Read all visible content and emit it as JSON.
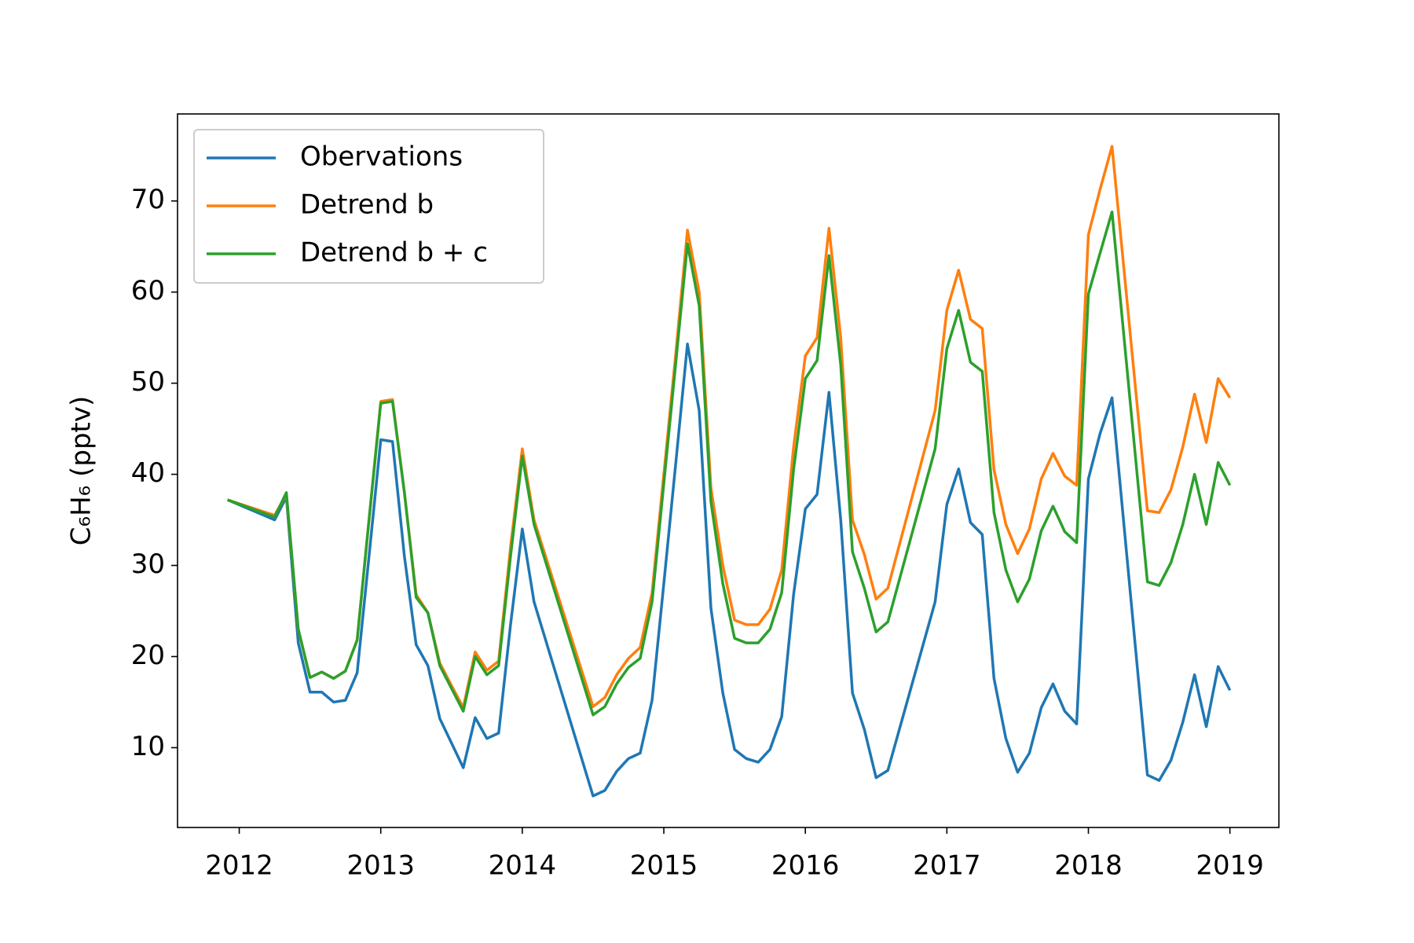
{
  "chart_data": {
    "type": "line",
    "ylabel": "C₆H₆ (pptv)",
    "x": [
      2011.917,
      2012.25,
      2012.333,
      2012.417,
      2012.5,
      2012.583,
      2012.667,
      2012.75,
      2012.833,
      2012.917,
      2013,
      2013.083,
      2013.167,
      2013.25,
      2013.333,
      2013.417,
      2013.5,
      2013.583,
      2013.667,
      2013.75,
      2013.833,
      2013.917,
      2014,
      2014.083,
      2014.5,
      2014.583,
      2014.667,
      2014.75,
      2014.833,
      2014.917,
      2015,
      2015.083,
      2015.167,
      2015.25,
      2015.333,
      2015.417,
      2015.5,
      2015.583,
      2015.667,
      2015.75,
      2015.833,
      2015.917,
      2016,
      2016.083,
      2016.167,
      2016.25,
      2016.333,
      2016.417,
      2016.5,
      2016.583,
      2016.917,
      2017,
      2017.083,
      2017.167,
      2017.25,
      2017.333,
      2017.417,
      2017.5,
      2017.583,
      2017.667,
      2017.75,
      2017.833,
      2017.917,
      2018,
      2018.083,
      2018.167,
      2018.417,
      2018.5,
      2018.583,
      2018.667,
      2018.75,
      2018.833,
      2018.917,
      2019
    ],
    "series": [
      {
        "name": "Obervations",
        "color": "#1f77b4",
        "values": [
          37.2,
          35.0,
          37.5,
          21.5,
          16.1,
          16.1,
          15.0,
          15.2,
          18.2,
          31,
          43.8,
          43.6,
          31,
          21.3,
          19,
          13.2,
          10.5,
          7.8,
          13.3,
          11,
          11.6,
          23.5,
          34,
          26,
          4.7,
          5.3,
          7.4,
          8.8,
          9.4,
          15.2,
          28,
          41,
          54.3,
          47,
          25.3,
          16,
          9.8,
          8.8,
          8.4,
          9.8,
          13.4,
          26.8,
          36.2,
          37.8,
          49,
          35,
          16,
          12,
          6.7,
          7.5,
          26,
          36.7,
          40.6,
          34.7,
          33.4,
          17.6,
          11,
          7.3,
          9.4,
          14.4,
          17,
          14,
          12.6,
          39.5,
          44.5,
          48.4,
          7.0,
          6.4,
          8.6,
          12.8,
          18,
          12.3,
          18.9,
          16.3
        ]
      },
      {
        "name": "Detrend b",
        "color": "#ff7f0e",
        "values": [
          37.2,
          35.5,
          37.8,
          23,
          17.7,
          18.3,
          17.6,
          18.4,
          21.8,
          35,
          48,
          48.2,
          38,
          26.8,
          24.8,
          19.3,
          16.8,
          14.4,
          20.5,
          18.5,
          19.5,
          32,
          42.8,
          35,
          14.5,
          15.5,
          18,
          19.8,
          21,
          27,
          40,
          53,
          66.8,
          60,
          38.5,
          30,
          24,
          23.5,
          23.5,
          25.2,
          29.5,
          43,
          53,
          55,
          67,
          55,
          35,
          31.2,
          26.3,
          27.5,
          47,
          58,
          62.4,
          57,
          56,
          40.5,
          34.5,
          31.3,
          34,
          39.5,
          42.3,
          39.8,
          38.8,
          66.3,
          71.3,
          76,
          36,
          35.8,
          38.3,
          43,
          48.8,
          43.5,
          50.5,
          48.4
        ]
      },
      {
        "name": "Detrend b + c",
        "color": "#2ca02c",
        "values": [
          37.2,
          35.3,
          38,
          23,
          17.7,
          18.3,
          17.6,
          18.4,
          21.8,
          35,
          47.8,
          48,
          38,
          26.5,
          24.8,
          19,
          16.5,
          14,
          20,
          18,
          19,
          31,
          42,
          34.5,
          13.6,
          14.5,
          17,
          18.8,
          19.8,
          26,
          39,
          52,
          65.3,
          58.5,
          37,
          28,
          22,
          21.5,
          21.5,
          23,
          27,
          40.5,
          50.5,
          52.5,
          64,
          52,
          31.5,
          27.5,
          22.7,
          23.8,
          42.8,
          53.8,
          58,
          52.3,
          51.3,
          35.8,
          29.5,
          26,
          28.5,
          33.8,
          36.5,
          33.7,
          32.5,
          59.8,
          64.3,
          68.8,
          28.2,
          27.8,
          30.3,
          34.5,
          40,
          34.5,
          41.3,
          38.8
        ]
      }
    ],
    "xlim": [
      2011.564,
      2019.346
    ],
    "xticks": [
      2012,
      2013,
      2014,
      2015,
      2016,
      2017,
      2018,
      2019
    ],
    "ylim": [
      1.24,
      79.55
    ],
    "yticks": [
      10,
      20,
      30,
      40,
      50,
      60,
      70
    ],
    "legend": "upper left"
  }
}
